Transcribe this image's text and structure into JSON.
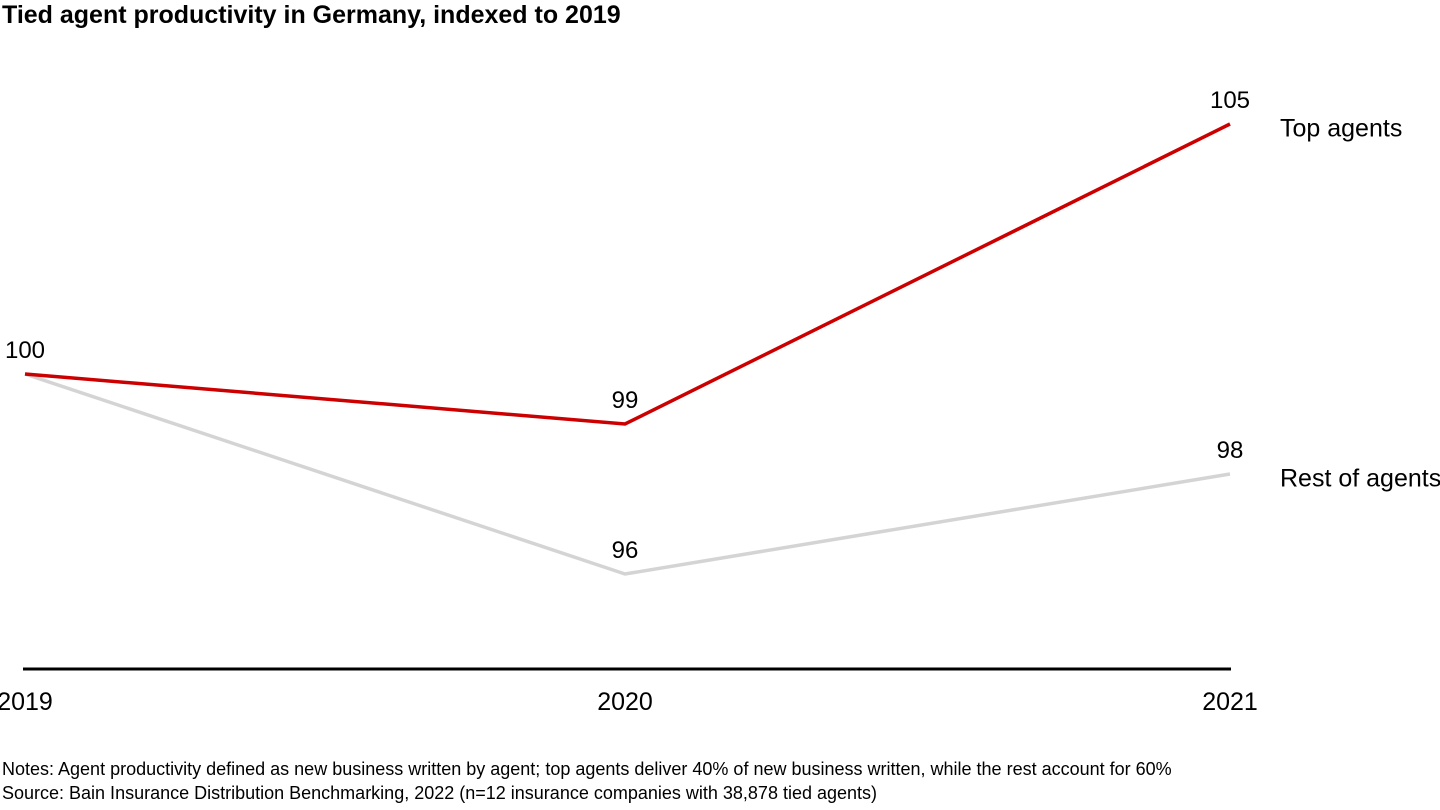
{
  "title": "Tied agent productivity in Germany, indexed to 2019",
  "chart_data": {
    "type": "line",
    "categories": [
      "2019",
      "2020",
      "2021"
    ],
    "series": [
      {
        "name": "Top agents",
        "color": "#cc0000",
        "values": [
          100,
          99,
          105
        ]
      },
      {
        "name": "Rest of agents",
        "color": "#d4d4d4",
        "values": [
          100,
          96,
          98
        ]
      }
    ],
    "baseline_value": 100,
    "ylim": [
      94,
      107
    ],
    "grid": false,
    "axis_color": "#000000",
    "legend_position": "right-of-line-end"
  },
  "footer": {
    "notes": "Notes: Agent productivity defined as new business written by agent; top agents deliver 40% of new business written, while the rest account for 60%",
    "source": "Source: Bain Insurance Distribution Benchmarking, 2022 (n=12 insurance companies with 38,878 tied agents)"
  }
}
